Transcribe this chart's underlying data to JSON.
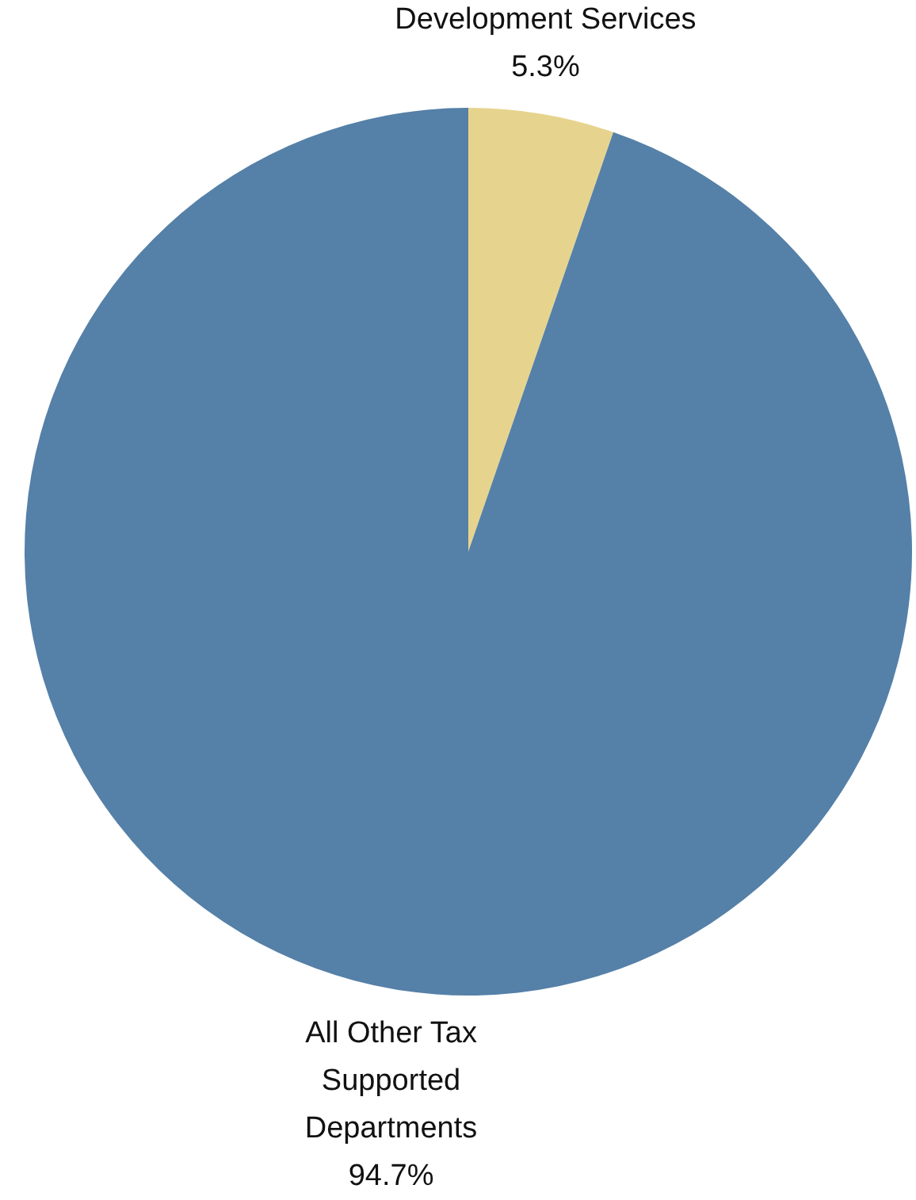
{
  "chart_data": {
    "type": "pie",
    "categories": [
      "Development Services",
      "All Other Tax Supported Departments"
    ],
    "values": [
      5.3,
      94.7
    ],
    "colors": [
      "#e6d48e",
      "#5580a8"
    ],
    "value_labels": [
      "5.3%",
      "94.7%"
    ],
    "legend": false
  }
}
